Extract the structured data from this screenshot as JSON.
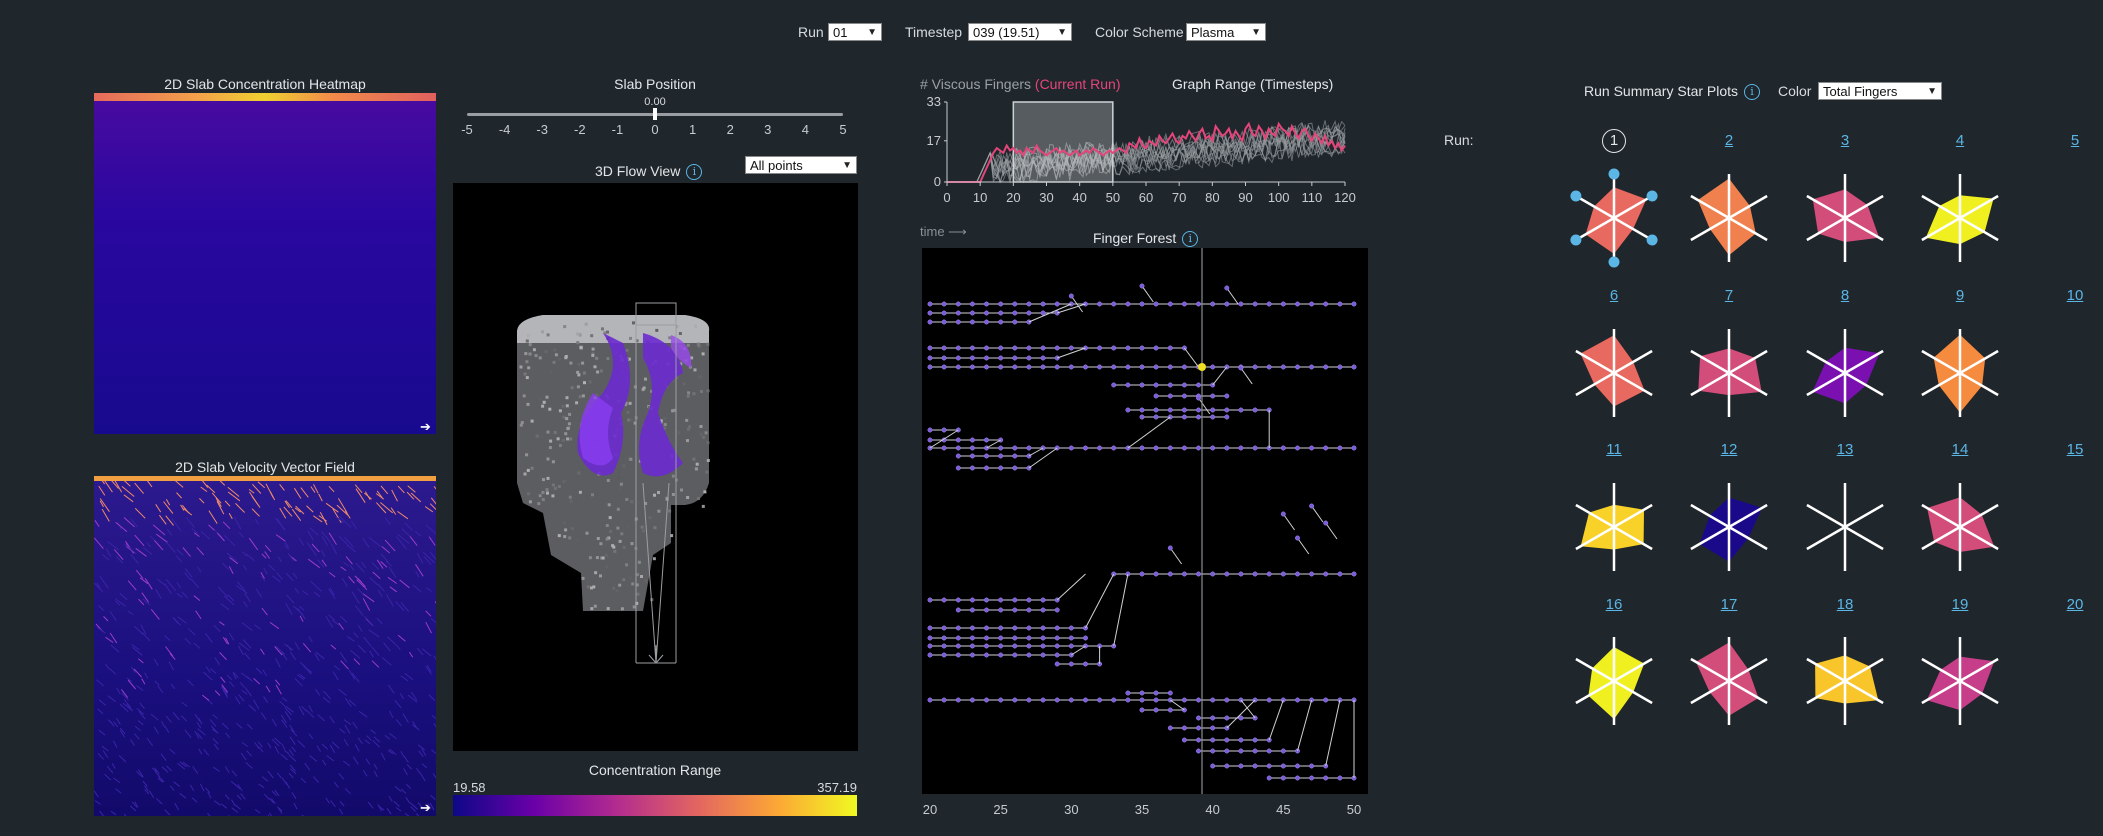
{
  "top_controls": {
    "run_label": "Run",
    "run_value": "01",
    "timestep_label": "Timestep",
    "timestep_value": "039 (19.51)",
    "color_scheme_label": "Color Scheme",
    "color_scheme_value": "Plasma"
  },
  "heatmap": {
    "title": "2D Slab Concentration Heatmap"
  },
  "vector_field": {
    "title": "2D Slab Velocity Vector Field"
  },
  "slab_position": {
    "title": "Slab Position",
    "value": "0.00",
    "ticks": [
      "-5",
      "-4",
      "-3",
      "-2",
      "-1",
      "0",
      "1",
      "2",
      "3",
      "4",
      "5"
    ]
  },
  "flow_view": {
    "title": "3D Flow View",
    "filter_value": "All points"
  },
  "concentration_range": {
    "title": "Concentration Range",
    "min": "19.58",
    "max": "357.19"
  },
  "fingers_chart": {
    "title_main": "# Viscous Fingers",
    "title_highlight": "(Current Run)",
    "range_title": "Graph Range (Timesteps)",
    "y_ticks": [
      "0",
      "17",
      "33"
    ],
    "x_ticks": [
      "0",
      "10",
      "20",
      "30",
      "40",
      "50",
      "60",
      "70",
      "80",
      "90",
      "100",
      "110",
      "120"
    ]
  },
  "chart_data": {
    "type": "line",
    "xlim": [
      0,
      120
    ],
    "ylim": [
      0,
      33
    ],
    "brush_range": [
      20,
      50
    ],
    "series": [
      {
        "values": [
          0,
          0,
          0,
          0,
          0,
          0,
          0,
          0,
          0,
          0,
          0,
          3,
          6,
          9,
          12,
          14,
          13,
          12,
          15,
          13,
          14,
          12,
          13,
          11,
          14,
          13,
          12,
          15,
          13,
          12,
          11,
          12,
          13,
          14,
          12,
          13,
          12,
          11,
          12,
          13,
          11,
          12,
          13,
          12,
          14,
          13,
          12,
          11,
          12,
          13,
          12,
          13,
          14,
          13,
          12,
          16,
          15,
          14,
          18,
          15,
          14,
          17,
          16,
          15,
          19,
          17,
          16,
          18,
          20,
          17,
          16,
          19,
          18,
          21,
          19,
          17,
          20,
          22,
          18,
          19,
          17,
          23,
          21,
          19,
          20,
          22,
          18,
          21,
          19,
          17,
          22,
          24,
          20,
          19,
          23,
          21,
          18,
          22,
          20,
          19,
          24,
          22,
          21,
          19,
          23,
          20,
          18,
          21,
          22,
          19,
          17,
          20,
          18,
          16,
          19,
          15,
          17,
          14,
          16,
          13,
          15
        ]
      }
    ]
  },
  "finger_forest": {
    "title": "Finger Forest",
    "time_label": "time ⟶",
    "x_ticks": [
      "20",
      "25",
      "30",
      "35",
      "40",
      "45",
      "50"
    ]
  },
  "star_plots": {
    "title": "Run Summary Star Plots",
    "color_label": "Color",
    "color_value": "Total Fingers",
    "run_label": "Run:",
    "runs": [
      {
        "label": "1",
        "color": "#e8695f"
      },
      {
        "label": "2",
        "color": "#f0804e"
      },
      {
        "label": "3",
        "color": "#d24d7a"
      },
      {
        "label": "4",
        "color": "#f0f020"
      },
      {
        "label": "5",
        "color": "#f0f020"
      },
      {
        "label": "6",
        "color": "#e8695f"
      },
      {
        "label": "7",
        "color": "#d24d7a"
      },
      {
        "label": "8",
        "color": "#7a10b0"
      },
      {
        "label": "9",
        "color": "#f48b3e"
      },
      {
        "label": "10",
        "color": "#ec6c57"
      },
      {
        "label": "11",
        "color": "#f8d228"
      },
      {
        "label": "12",
        "color": "#1a0a8a"
      },
      {
        "label": "13",
        "color": ""
      },
      {
        "label": "14",
        "color": "#d24d7a"
      },
      {
        "label": "15",
        "color": ""
      },
      {
        "label": "16",
        "color": "#f0f020"
      },
      {
        "label": "17",
        "color": "#d24d7a"
      },
      {
        "label": "18",
        "color": "#f8c52a"
      },
      {
        "label": "19",
        "color": "#c63e8a"
      },
      {
        "label": "20",
        "color": "#f28a45"
      }
    ]
  }
}
